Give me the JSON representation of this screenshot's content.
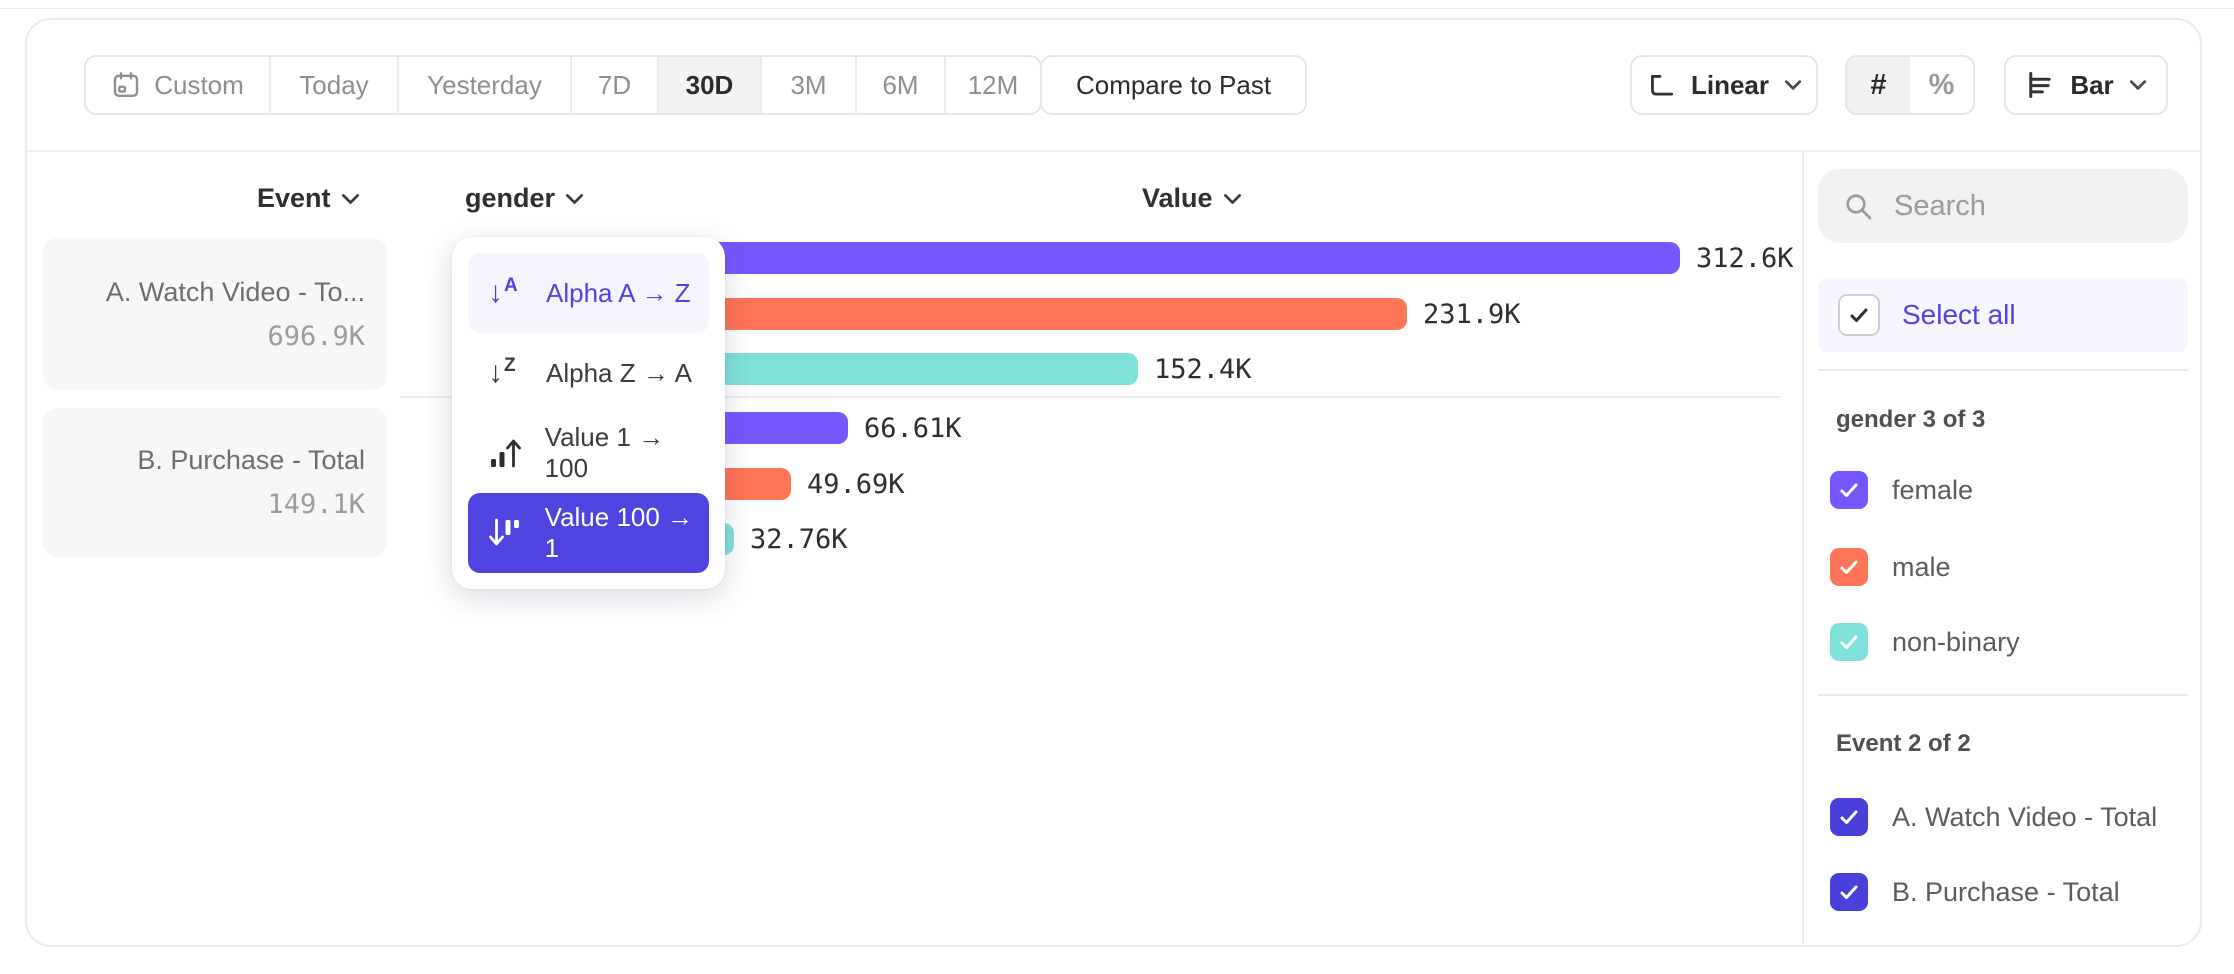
{
  "colors": {
    "purple": "#7856FF",
    "coral": "#FF7557",
    "teal": "#80E1D9",
    "indigo": "#4F44E0",
    "indigo_dark": "#4840D8",
    "menu_hover_bg": "#F6F5FD",
    "selectall_bg": "#F7F6FE"
  },
  "toolbar": {
    "date_ranges": [
      "Custom",
      "Today",
      "Yesterday",
      "7D",
      "30D",
      "3M",
      "6M",
      "12M"
    ],
    "selected_range": "30D",
    "compare_button": "Compare to Past",
    "scale_selector": "Linear",
    "value_mode_count": "#",
    "value_mode_percent": "%",
    "selected_value_mode": "#",
    "chart_type_selector": "Bar"
  },
  "chart_header": {
    "event": "Event",
    "breakdown": "gender",
    "value": "Value"
  },
  "event_cards": [
    {
      "name": "A. Watch Video - To...",
      "total": "696.9K"
    },
    {
      "name": "B. Purchase - Total",
      "total": "149.1K"
    }
  ],
  "sort_menu": {
    "items": [
      {
        "label": "Alpha A → Z",
        "state": "highlighted"
      },
      {
        "label": "Alpha Z → A",
        "state": "normal"
      },
      {
        "label": "Value 1 → 100",
        "state": "normal"
      },
      {
        "label": "Value 100 → 1",
        "state": "selected"
      }
    ]
  },
  "sidebar": {
    "search_placeholder": "Search",
    "select_all_label": "Select all",
    "groups": [
      {
        "title": "gender 3 of 3",
        "items": [
          {
            "label": "female",
            "checked": true,
            "color": "#7856FF"
          },
          {
            "label": "male",
            "checked": true,
            "color": "#FF7557"
          },
          {
            "label": "non-binary",
            "checked": true,
            "color": "#80E1D9"
          }
        ]
      },
      {
        "title": "Event 2 of 2",
        "items": [
          {
            "label": "A. Watch Video - Total",
            "checked": true,
            "color": "#4840D8"
          },
          {
            "label": "B. Purchase - Total",
            "checked": true,
            "color": "#4840D8"
          }
        ]
      }
    ]
  },
  "chart_data": {
    "type": "bar",
    "orientation": "horizontal",
    "breakdown": "gender",
    "sort": "Value 100 → 1",
    "xlim": [
      0,
      312600
    ],
    "groups": [
      {
        "event": "A. Watch Video - Total",
        "event_total": "696.9K",
        "bars": [
          {
            "category": "female",
            "value": 312600,
            "label": "312.6K",
            "color": "#7856FF"
          },
          {
            "category": "male",
            "value": 231900,
            "label": "231.9K",
            "color": "#FF7557"
          },
          {
            "category": "non-binary",
            "value": 152400,
            "label": "152.4K",
            "color": "#80E1D9"
          }
        ]
      },
      {
        "event": "B. Purchase - Total",
        "event_total": "149.1K",
        "bars": [
          {
            "category": "female",
            "value": 66610,
            "label": "66.61K",
            "color": "#7856FF"
          },
          {
            "category": "male",
            "value": 49690,
            "label": "49.69K",
            "color": "#FF7557"
          },
          {
            "category": "non-binary",
            "value": 32760,
            "label": "32.76K",
            "color": "#80E1D9"
          }
        ]
      }
    ]
  }
}
